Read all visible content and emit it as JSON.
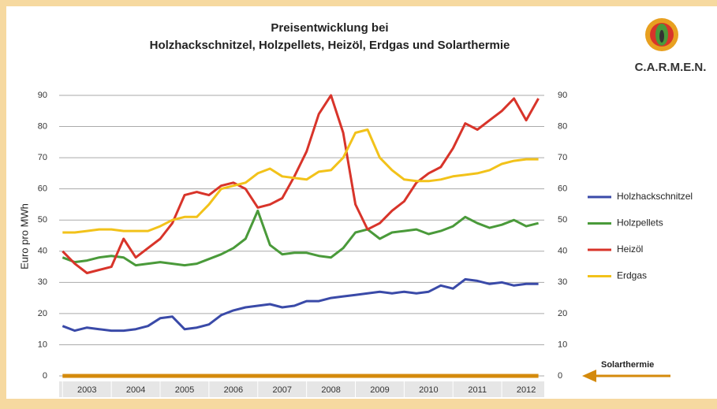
{
  "chart_data": {
    "type": "line",
    "title": "Preisentwicklung bei",
    "subtitle": "Holzhackschnitzel, Holzpellets, Heizöl, Erdgas und Solarthermie",
    "logo": "C.A.R.M.E.N.",
    "y_label": "Euro pro MWh",
    "x": [
      2002.5,
      2002.75,
      2003,
      2003.25,
      2003.5,
      2003.75,
      2004,
      2004.25,
      2004.5,
      2004.75,
      2005,
      2005.25,
      2005.5,
      2005.75,
      2006,
      2006.25,
      2006.5,
      2006.75,
      2007,
      2007.25,
      2007.5,
      2007.75,
      2008,
      2008.25,
      2008.5,
      2008.75,
      2009,
      2009.25,
      2009.5,
      2009.75,
      2010,
      2010.25,
      2010.5,
      2010.75,
      2011,
      2011.25,
      2011.5,
      2011.75,
      2012,
      2012.25
    ],
    "series": [
      {
        "name": "Holzhackschnitzel",
        "color": "#3a4aa8",
        "values": [
          16,
          14.5,
          15.5,
          15,
          14.5,
          14.5,
          15,
          16,
          18.5,
          19,
          15,
          15.5,
          16.5,
          19.5,
          21,
          22,
          22.5,
          23,
          22,
          22.5,
          24,
          24,
          25,
          25.5,
          26,
          26.5,
          27,
          26.5,
          27,
          26.5,
          27,
          29,
          28,
          31,
          30.5,
          29.5,
          30,
          29,
          29.5,
          29.5
        ]
      },
      {
        "name": "Holzpellets",
        "color": "#4a9a3a",
        "values": [
          38,
          36.5,
          37,
          38,
          38.5,
          38,
          35.5,
          36,
          36.5,
          36,
          35.5,
          36,
          37.5,
          39,
          41,
          44,
          53,
          42,
          39,
          39.5,
          39.5,
          38.5,
          38,
          41,
          46,
          47,
          44,
          46,
          46.5,
          47,
          45.5,
          46.5,
          48,
          51,
          49,
          47.5,
          48.5,
          50,
          48,
          49
        ]
      },
      {
        "name": "Heizöl",
        "color": "#d8342a",
        "values": [
          40,
          36,
          33,
          34,
          35,
          44,
          38,
          41,
          44,
          49,
          58,
          59,
          58,
          61,
          62,
          60,
          54,
          55,
          57,
          64,
          72,
          84,
          90,
          78,
          55,
          47,
          49,
          53,
          56,
          62,
          65,
          67,
          73,
          81,
          79,
          82,
          85,
          89,
          82,
          89
        ]
      },
      {
        "name": "Erdgas",
        "color": "#f2c21a",
        "values": [
          46,
          46,
          46.5,
          47,
          47,
          46.5,
          46.5,
          46.5,
          48,
          50,
          51,
          51,
          55,
          60,
          61,
          62,
          65,
          66.5,
          64,
          63.5,
          63,
          65.5,
          66,
          70,
          78,
          79,
          70,
          66,
          63,
          62.5,
          62.5,
          63,
          64,
          64.5,
          65,
          66,
          68,
          69,
          69.5,
          69.5
        ]
      },
      {
        "name": "Solarthermie",
        "color": "#d48a0c",
        "values": [
          0,
          0,
          0,
          0,
          0,
          0,
          0,
          0,
          0,
          0,
          0,
          0,
          0,
          0,
          0,
          0,
          0,
          0,
          0,
          0,
          0,
          0,
          0,
          0,
          0,
          0,
          0,
          0,
          0,
          0,
          0,
          0,
          0,
          0,
          0,
          0,
          0,
          0,
          0,
          0
        ]
      }
    ],
    "xlim": [
      2002.43,
      2012.37
    ],
    "xticks": [
      2003,
      2004,
      2005,
      2006,
      2007,
      2008,
      2009,
      2010,
      2011,
      2012
    ],
    "ylim": [
      0,
      90
    ],
    "yticks": [
      0,
      10,
      20,
      30,
      40,
      50,
      60,
      70,
      80,
      90
    ],
    "grid": true
  }
}
